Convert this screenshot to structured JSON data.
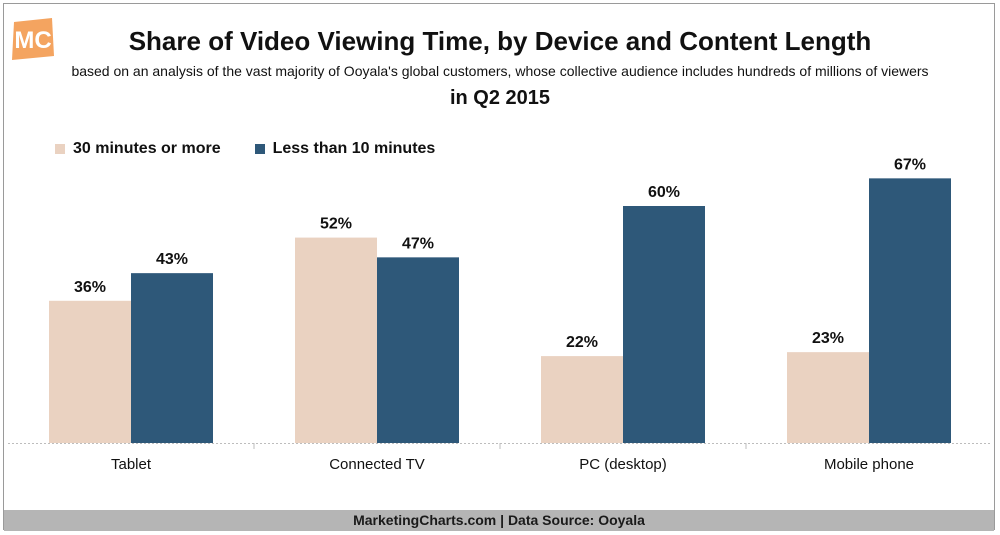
{
  "logo": {
    "text": "MC",
    "color": "#f4a460"
  },
  "chart_data": {
    "type": "bar",
    "title": "Share of Video Viewing Time, by Device and Content Length",
    "subtitle": "based on an analysis of the vast majority of Ooyala's global customers, whose collective audience includes hundreds of millions of viewers",
    "period": "in Q2 2015",
    "categories": [
      "Tablet",
      "Connected TV",
      "PC (desktop)",
      "Mobile phone"
    ],
    "series": [
      {
        "name": "30 minutes or more",
        "values": [
          36,
          52,
          22,
          23
        ],
        "color": "#ead2c1"
      },
      {
        "name": "Less than 10 minutes",
        "values": [
          43,
          47,
          60,
          67
        ],
        "color": "#2e5879"
      }
    ],
    "value_suffix": "%",
    "ylim": [
      0,
      70
    ],
    "grid": false,
    "legend_position": "top-left"
  },
  "footer": {
    "text": "MarketingCharts.com | Data Source: Ooyala"
  }
}
